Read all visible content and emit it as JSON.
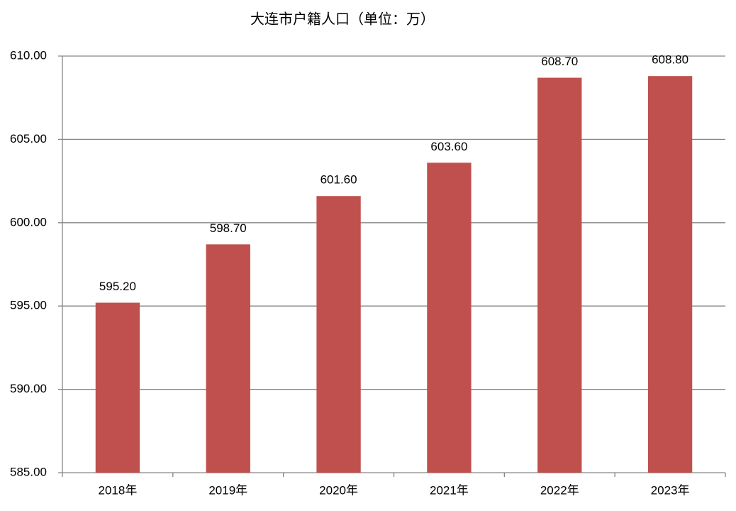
{
  "chart_data": {
    "type": "bar",
    "title": "大连市户籍人口（单位：万）",
    "categories": [
      "2018年",
      "2019年",
      "2020年",
      "2021年",
      "2022年",
      "2023年"
    ],
    "values": [
      595.2,
      598.7,
      601.6,
      603.6,
      608.7,
      608.8
    ],
    "value_labels": [
      "595.20",
      "598.70",
      "601.60",
      "603.60",
      "608.70",
      "608.80"
    ],
    "color": "#c0504d",
    "ylim": [
      585,
      610
    ],
    "yticks": [
      {
        "value": 585,
        "label": "585.00"
      },
      {
        "value": 590,
        "label": "590.00"
      },
      {
        "value": 595,
        "label": "595.00"
      },
      {
        "value": 600,
        "label": "600.00"
      },
      {
        "value": 605,
        "label": "605.00"
      },
      {
        "value": 610,
        "label": "610.00"
      }
    ],
    "grid": true
  }
}
